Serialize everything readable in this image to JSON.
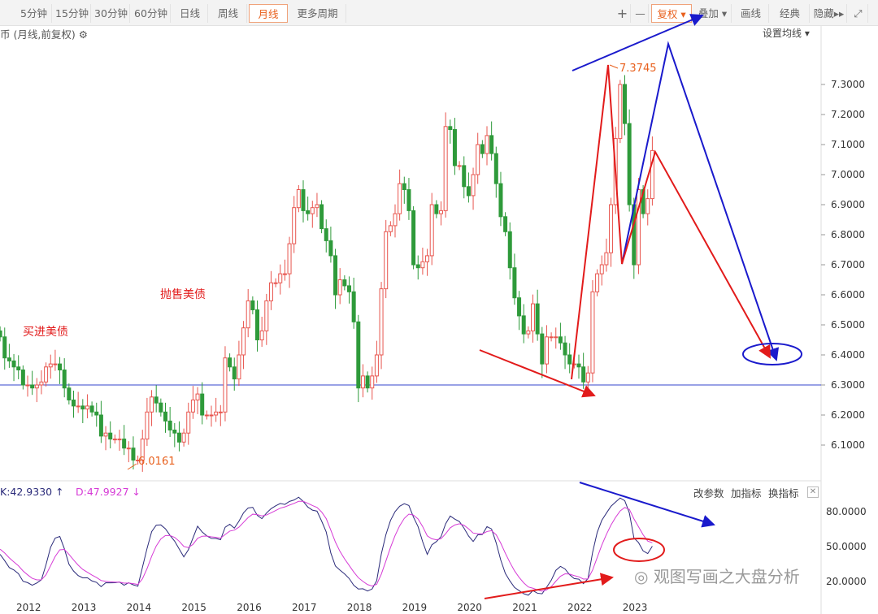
{
  "toolbar": {
    "periods": [
      "5分钟",
      "15分钟",
      "30分钟",
      "60分钟",
      "日线",
      "周线",
      "月线",
      "更多周期"
    ],
    "active": "月线",
    "right": {
      "plus": "+",
      "minus": "—",
      "fuquan": "复权",
      "overlay": "叠加",
      "draw": "画线",
      "classic": "经典",
      "hide": "隐藏"
    }
  },
  "subtitle": "币 (月线,前复权)",
  "ma_setting": "设置均线",
  "kdj": {
    "k_label": "K:42.9330",
    "d_label": "D:47.9927",
    "buttons": [
      "改参数",
      "加指标",
      "换指标"
    ]
  },
  "annotations": {
    "buy": "买进美债",
    "sell": "抛售美债",
    "high": "7.3745",
    "low": "6.0161",
    "watermark": "观图写画之大盘分析"
  },
  "colors": {
    "up": "#e8554e",
    "down": "#2e9a3a",
    "k": "#2b2b7a",
    "d": "#d63bd6",
    "accent": "#e8601d"
  },
  "chart_data": {
    "type": "candlestick",
    "start": "2011-07",
    "closes": [
      6.46,
      6.39,
      6.38,
      6.36,
      6.35,
      6.3,
      6.3,
      6.29,
      6.3,
      6.31,
      6.36,
      6.37,
      6.37,
      6.35,
      6.29,
      6.25,
      6.23,
      6.23,
      6.22,
      6.23,
      6.21,
      6.2,
      6.13,
      6.14,
      6.12,
      6.12,
      6.12,
      6.09,
      6.09,
      6.05,
      6.05,
      6.12,
      6.21,
      6.26,
      6.24,
      6.21,
      6.18,
      6.15,
      6.14,
      6.11,
      6.14,
      6.21,
      6.25,
      6.27,
      6.2,
      6.2,
      6.2,
      6.21,
      6.21,
      6.39,
      6.36,
      6.32,
      6.4,
      6.49,
      6.58,
      6.55,
      6.45,
      6.48,
      6.58,
      6.64,
      6.64,
      6.67,
      6.67,
      6.77,
      6.89,
      6.95,
      6.88,
      6.87,
      6.89,
      6.9,
      6.82,
      6.78,
      6.73,
      6.6,
      6.65,
      6.63,
      6.61,
      6.51,
      6.29,
      6.33,
      6.29,
      6.33,
      6.4,
      6.62,
      6.81,
      6.83,
      6.87,
      6.97,
      6.95,
      6.88,
      6.7,
      6.69,
      6.71,
      6.73,
      6.9,
      6.87,
      6.88,
      7.16,
      7.15,
      7.03,
      7.03,
      6.96,
      6.93,
      7.0,
      7.1,
      7.07,
      7.13,
      7.07,
      6.97,
      6.86,
      6.81,
      6.69,
      6.59,
      6.53,
      6.47,
      6.48,
      6.57,
      6.47,
      6.37,
      6.46,
      6.46,
      6.46,
      6.44,
      6.4,
      6.37,
      6.37,
      6.36,
      6.31,
      6.34,
      6.61,
      6.67,
      6.7,
      6.74,
      6.9,
      7.12,
      7.3,
      7.17,
      6.9,
      6.7,
      6.95,
      6.87,
      6.92,
      7.08
    ],
    "y_ticks": [
      "7.3000",
      "7.2000",
      "7.1000",
      "7.0000",
      "6.9000",
      "6.8000",
      "6.7000",
      "6.6000",
      "6.5000",
      "6.4000",
      "6.3000",
      "6.2000",
      "6.1000"
    ],
    "ylim": [
      6.0,
      7.45
    ],
    "kdj_ticks": [
      "80.0000",
      "50.0000",
      "20.0000"
    ],
    "x_ticks": [
      "2012",
      "2013",
      "2014",
      "2015",
      "2016",
      "2017",
      "2018",
      "2019",
      "2020",
      "2021",
      "2022",
      "2023"
    ],
    "reference_line": 6.3
  }
}
